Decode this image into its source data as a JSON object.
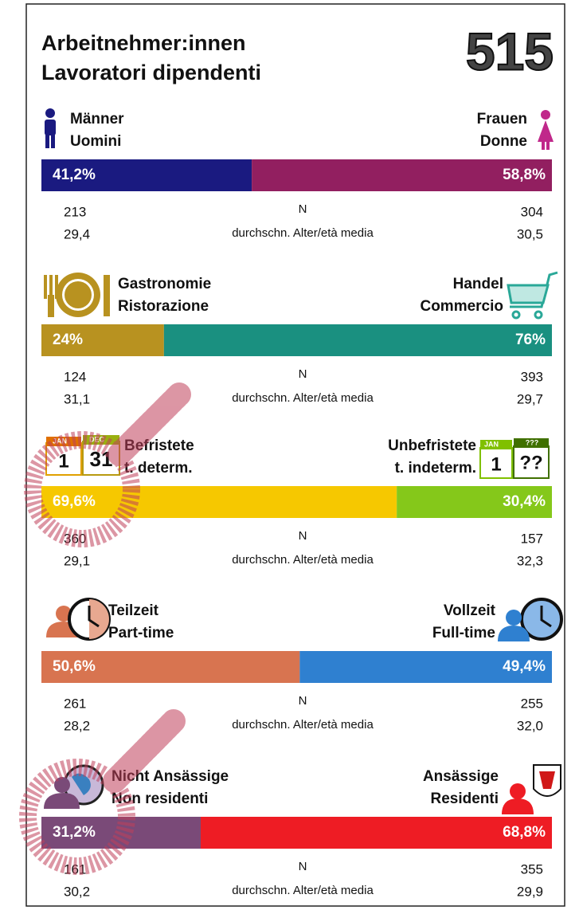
{
  "header": {
    "title_lines": [
      "Arbeitnehmer:innen",
      "Lavoratori dipendenti"
    ],
    "total": "515"
  },
  "sections": [
    {
      "left_label": [
        "Männer",
        "Uomini"
      ],
      "right_label": [
        "Frauen",
        "Donne"
      ],
      "left_share": 41.2,
      "left_share_label": "41,2%",
      "right_share": 58.8,
      "right_share_label": "58,8%",
      "left_n": "213",
      "right_n": "304",
      "n_label": "N",
      "left_age": "29,4",
      "right_age": "30,5",
      "age_label": "durchschn. Alter/età media"
    },
    {
      "left_label": [
        "Gastronomie",
        "Ristorazione"
      ],
      "right_label": [
        "Handel",
        "Commercio"
      ],
      "left_share": 24,
      "left_share_label": "24%",
      "right_share": 76,
      "right_share_label": "76%",
      "left_n": "124",
      "right_n": "393",
      "n_label": "N",
      "left_age": "31,1",
      "right_age": "29,7",
      "age_label": "durchschn. Alter/età media"
    },
    {
      "left_label": [
        "Befristete",
        "t. determ."
      ],
      "right_label": [
        "Unbefristete",
        "t. indeterm."
      ],
      "left_share": 69.6,
      "left_share_label": "69,6%",
      "right_share": 30.4,
      "right_share_label": "30,4%",
      "left_n": "360",
      "right_n": "157",
      "n_label": "N",
      "left_age": "29,1",
      "right_age": "32,3",
      "age_label": "durchschn. Alter/età media",
      "left_icon_texts": [
        "JAN",
        "1",
        "DEC",
        "31"
      ],
      "right_icon_texts": [
        "JAN",
        "1",
        "???",
        "??"
      ]
    },
    {
      "left_label": [
        "Teilzeit",
        "Part-time"
      ],
      "right_label": [
        "Vollzeit",
        "Full-time"
      ],
      "left_share": 50.6,
      "left_share_label": "50,6%",
      "right_share": 49.4,
      "right_share_label": "49,4%",
      "left_n": "261",
      "right_n": "255",
      "n_label": "N",
      "left_age": "28,2",
      "right_age": "32,0",
      "age_label": "durchschn. Alter/età media"
    },
    {
      "left_label": [
        "Nicht Ansässige",
        "Non residenti"
      ],
      "right_label": [
        "Ansässige",
        "Residenti"
      ],
      "left_share": 31.2,
      "left_share_label": "31,2%",
      "right_share": 68.8,
      "right_share_label": "68,8%",
      "left_n": "161",
      "right_n": "355",
      "n_label": "N",
      "left_age": "30,2",
      "right_age": "29,9",
      "age_label": "durchschn. Alter/età media"
    }
  ]
}
